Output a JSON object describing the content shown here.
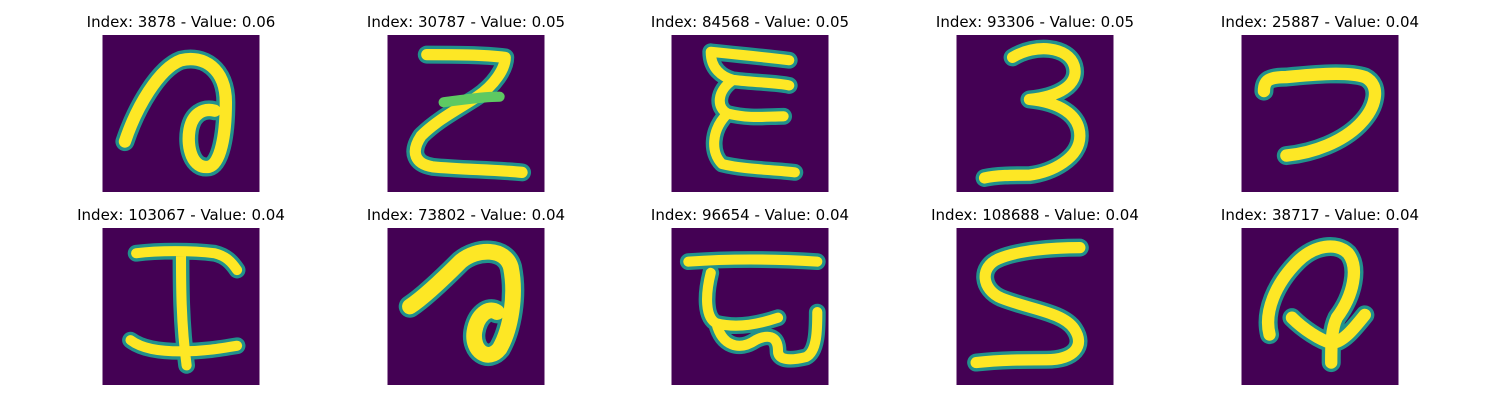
{
  "panels": [
    {
      "title": "Index: 3878 - Value: 0.06",
      "glyph": "handwritten-a-like-symbol"
    },
    {
      "title": "Index: 30787 - Value: 0.05",
      "glyph": "handwritten-Z"
    },
    {
      "title": "Index: 84568 - Value: 0.05",
      "glyph": "handwritten-E-like-symbol"
    },
    {
      "title": "Index: 93306 - Value: 0.05",
      "glyph": "handwritten-3"
    },
    {
      "title": "Index: 25887 - Value: 0.04",
      "glyph": "handwritten-7-like-symbol"
    },
    {
      "title": "Index: 103067 - Value: 0.04",
      "glyph": "handwritten-I"
    },
    {
      "title": "Index: 73802 - Value: 0.04",
      "glyph": "handwritten-a-like-symbol"
    },
    {
      "title": "Index: 96654 - Value: 0.04",
      "glyph": "handwritten-E-like-symbol"
    },
    {
      "title": "Index: 108688 - Value: 0.04",
      "glyph": "handwritten-S"
    },
    {
      "title": "Index: 38717 - Value: 0.04",
      "glyph": "handwritten-arrow-like-symbol"
    }
  ],
  "colors": {
    "background": "#440154",
    "stroke": "#FDE725",
    "edge": "#21918C",
    "edge_mid": "#5EC962"
  }
}
